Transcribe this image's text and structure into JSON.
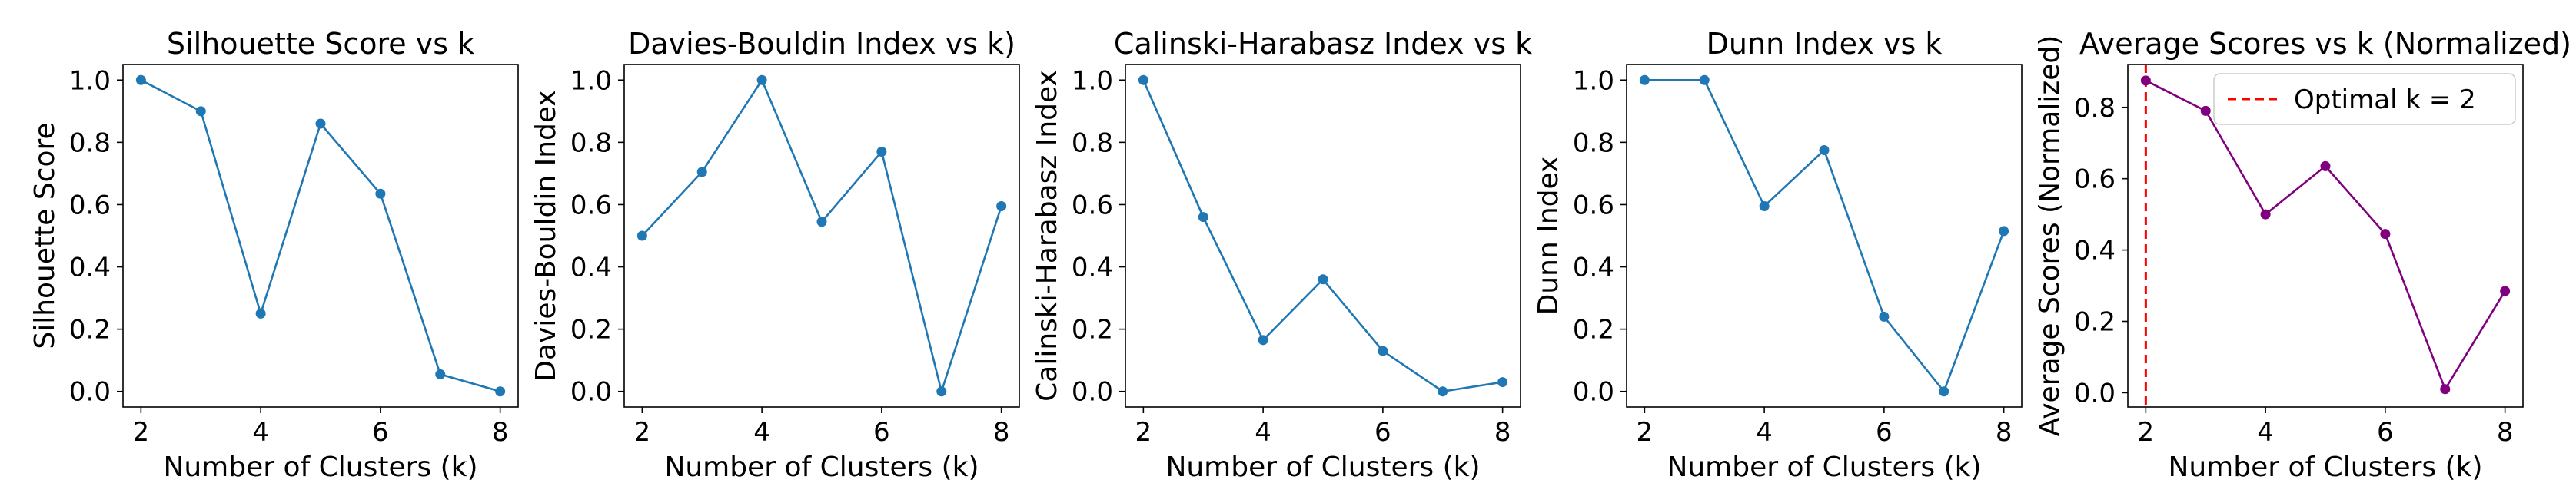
{
  "chart_data": [
    {
      "type": "line",
      "title": "Silhouette Score vs k",
      "xlabel": "Number of Clusters (k)",
      "ylabel": "Silhouette Score",
      "x": [
        2,
        3,
        4,
        5,
        6,
        7,
        8
      ],
      "series": [
        {
          "values": [
            1.0,
            0.9,
            0.25,
            0.86,
            0.635,
            0.055,
            0.0
          ],
          "color": "#1f77b4"
        }
      ],
      "xticks": [
        2,
        4,
        6,
        8
      ],
      "yticks": [
        0.0,
        0.2,
        0.4,
        0.6,
        0.8,
        1.0
      ],
      "xlim": [
        1.7,
        8.3
      ],
      "ylim": [
        -0.05,
        1.05
      ],
      "grid": false
    },
    {
      "type": "line",
      "title": "Davies-Bouldin Index vs k)",
      "xlabel": "Number of Clusters (k)",
      "ylabel": "Davies-Bouldin Index",
      "x": [
        2,
        3,
        4,
        5,
        6,
        7,
        8
      ],
      "series": [
        {
          "values": [
            0.5,
            0.705,
            1.0,
            0.545,
            0.77,
            0.0,
            0.595
          ],
          "color": "#1f77b4"
        }
      ],
      "xticks": [
        2,
        4,
        6,
        8
      ],
      "yticks": [
        0.0,
        0.2,
        0.4,
        0.6,
        0.8,
        1.0
      ],
      "xlim": [
        1.7,
        8.3
      ],
      "ylim": [
        -0.05,
        1.05
      ],
      "grid": false
    },
    {
      "type": "line",
      "title": "Calinski-Harabasz Index vs k",
      "xlabel": "Number of Clusters (k)",
      "ylabel": "Calinski-Harabasz Index",
      "x": [
        2,
        3,
        4,
        5,
        6,
        7,
        8
      ],
      "series": [
        {
          "values": [
            1.0,
            0.56,
            0.165,
            0.36,
            0.13,
            0.0,
            0.03
          ],
          "color": "#1f77b4"
        }
      ],
      "xticks": [
        2,
        4,
        6,
        8
      ],
      "yticks": [
        0.0,
        0.2,
        0.4,
        0.6,
        0.8,
        1.0
      ],
      "xlim": [
        1.7,
        8.3
      ],
      "ylim": [
        -0.05,
        1.05
      ],
      "grid": false
    },
    {
      "type": "line",
      "title": "Dunn Index vs k",
      "xlabel": "Number of Clusters (k)",
      "ylabel": "Dunn Index",
      "x": [
        2,
        3,
        4,
        5,
        6,
        7,
        8
      ],
      "series": [
        {
          "values": [
            1.0,
            1.0,
            0.595,
            0.775,
            0.24,
            0.0,
            0.515
          ],
          "color": "#1f77b4"
        }
      ],
      "xticks": [
        2,
        4,
        6,
        8
      ],
      "yticks": [
        0.0,
        0.2,
        0.4,
        0.6,
        0.8,
        1.0
      ],
      "xlim": [
        1.7,
        8.3
      ],
      "ylim": [
        -0.05,
        1.05
      ],
      "grid": false
    },
    {
      "type": "line",
      "title": "Average Scores vs k (Normalized)",
      "xlabel": "Number of Clusters (k)",
      "ylabel": "Average Scores (Normalized)",
      "x": [
        2,
        3,
        4,
        5,
        6,
        7,
        8
      ],
      "series": [
        {
          "values": [
            0.875,
            0.79,
            0.5,
            0.635,
            0.445,
            0.01,
            0.285
          ],
          "color": "#800080"
        }
      ],
      "xticks": [
        2,
        4,
        6,
        8
      ],
      "yticks": [
        0.0,
        0.2,
        0.4,
        0.6,
        0.8
      ],
      "xlim": [
        1.7,
        8.3
      ],
      "ylim": [
        -0.04,
        0.92
      ],
      "grid": false,
      "vline": {
        "x": 2,
        "color": "#ff0000",
        "style": "dashed",
        "label": "Optimal k = 2"
      },
      "legend_position": "top-right"
    }
  ]
}
